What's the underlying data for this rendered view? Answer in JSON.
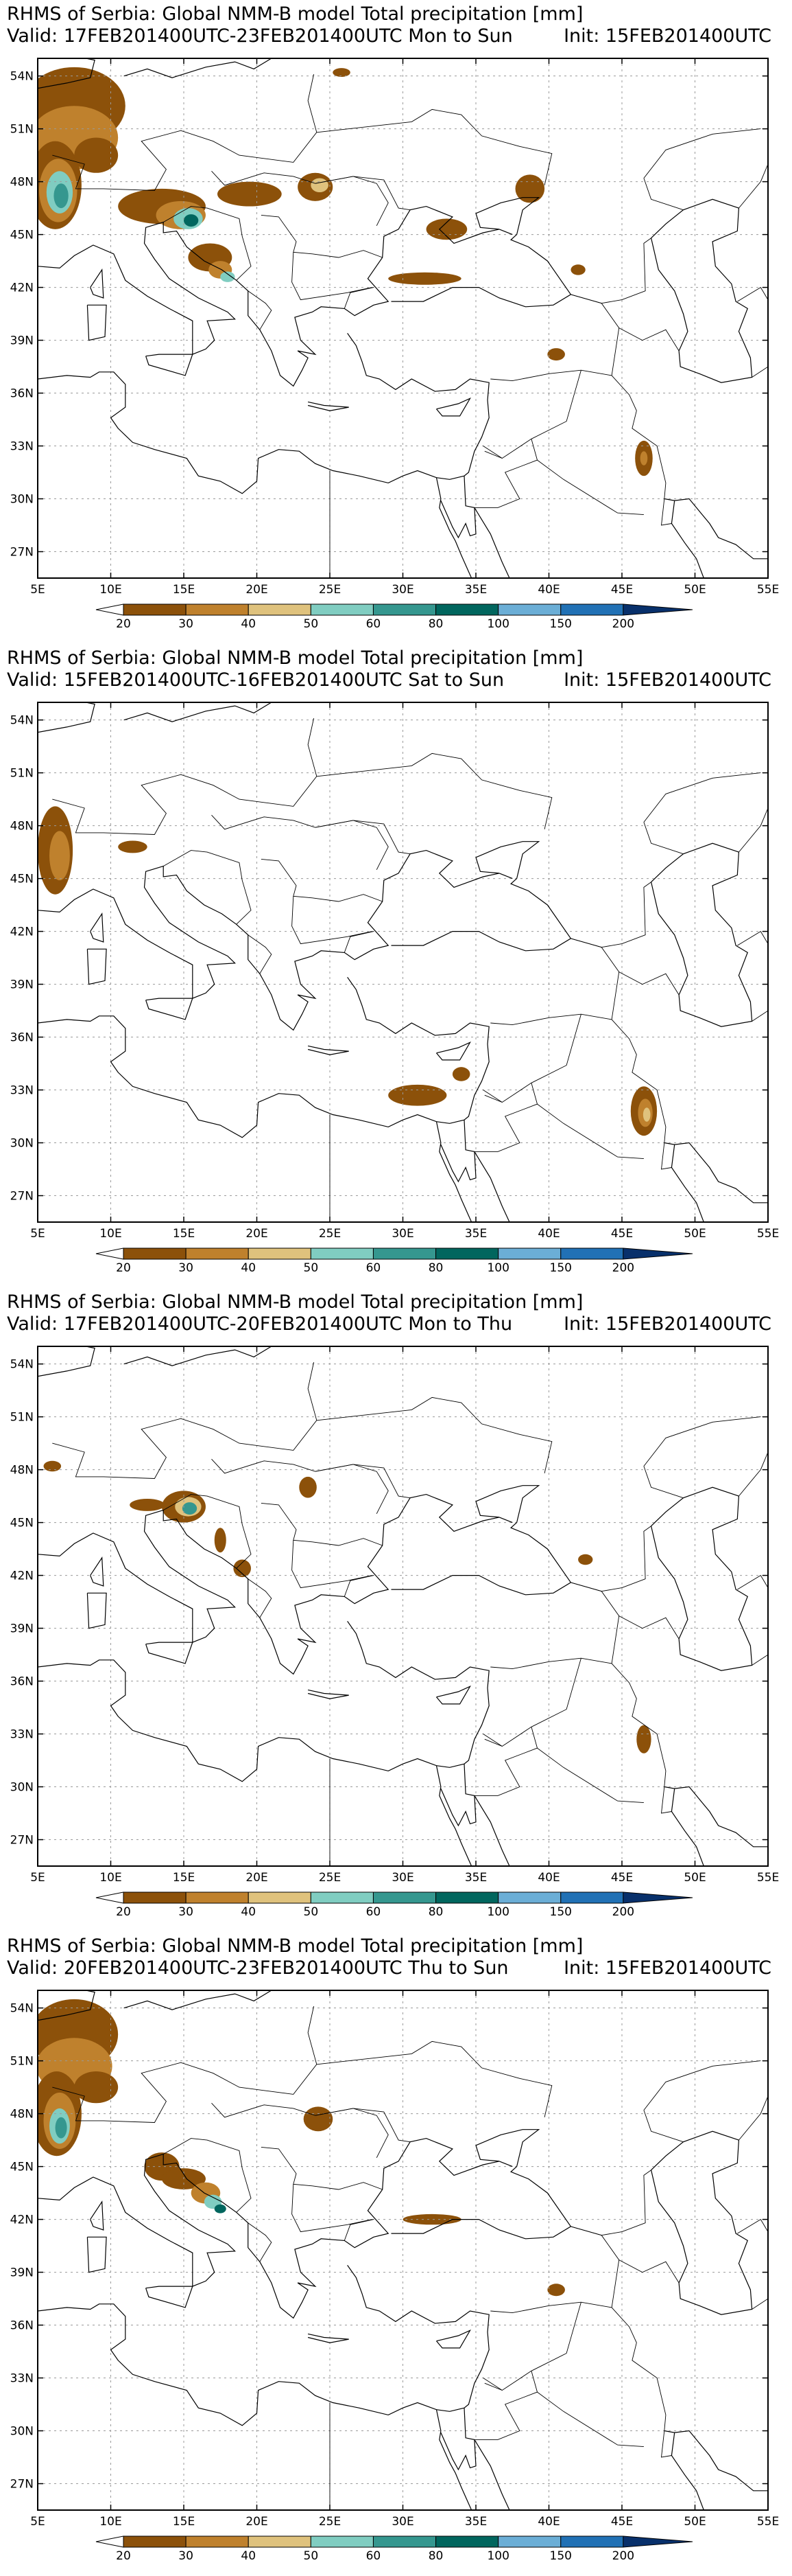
{
  "colorbar": {
    "levels": [
      "20",
      "30",
      "40",
      "50",
      "60",
      "80",
      "100",
      "150",
      "200"
    ],
    "colors": [
      "#8c510a",
      "#bf812d",
      "#dfc27d",
      "#80cdc1",
      "#35978f",
      "#01665e",
      "#6baed6",
      "#2171b5",
      "#08306b"
    ]
  },
  "axes": {
    "lat_labels": [
      "54N",
      "51N",
      "48N",
      "45N",
      "42N",
      "39N",
      "36N",
      "33N",
      "30N",
      "27N"
    ],
    "lon_labels": [
      "5E",
      "10E",
      "15E",
      "20E",
      "25E",
      "30E",
      "35E",
      "40E",
      "45E",
      "50E",
      "55E"
    ]
  },
  "panels": [
    {
      "title": "RHMS of Serbia: Global NMM-B model Total precipitation [mm]",
      "valid": "Valid: 17FEB201400UTC-23FEB201400UTC Mon to Sun",
      "init": "Init: 15FEB201400UTC"
    },
    {
      "title": "RHMS of Serbia: Global NMM-B model Total precipitation [mm]",
      "valid": "Valid: 15FEB201400UTC-16FEB201400UTC Sat to Sun",
      "init": "Init: 15FEB201400UTC"
    },
    {
      "title": "RHMS of Serbia: Global NMM-B model Total precipitation [mm]",
      "valid": "Valid: 17FEB201400UTC-20FEB201400UTC Mon to Thu",
      "init": "Init: 15FEB201400UTC"
    },
    {
      "title": "RHMS of Serbia: Global NMM-B model Total precipitation [mm]",
      "valid": "Valid: 20FEB201400UTC-23FEB201400UTC Thu to Sun",
      "init": "Init: 15FEB201400UTC"
    }
  ]
}
